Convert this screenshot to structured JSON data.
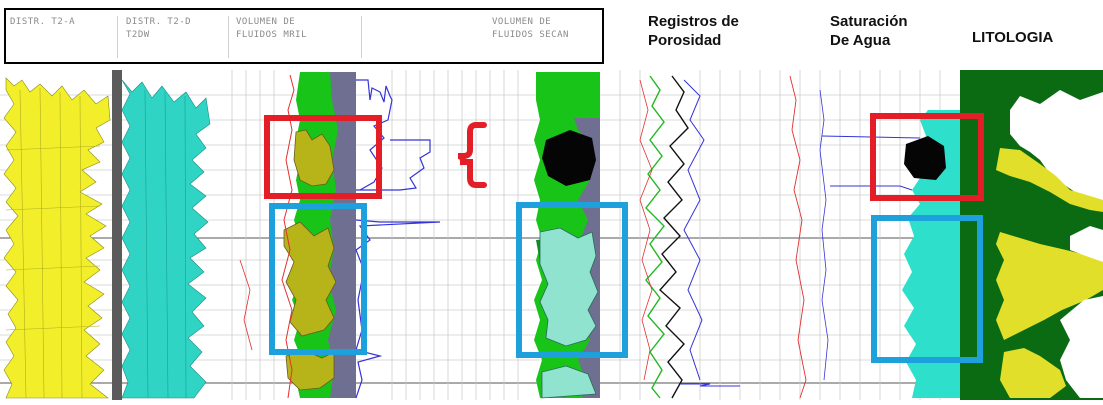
{
  "header": {
    "col1": "DISTR. T2-A",
    "col2_line1": "DISTR. T2-D",
    "col2_line2": "T2DW",
    "col3_line1": "VOLUMEN DE",
    "col3_line2": "FLUIDOS MRIL",
    "col4_line1": "VOLUMEN DE",
    "col4_line2": "FLUIDOS SECAN"
  },
  "titles": {
    "porosity_line1": "Registros de",
    "porosity_line2": "Porosidad",
    "saturation_line1": "Saturación",
    "saturation_line2": "De Agua",
    "lithology": "LITOLOGIA"
  },
  "colors": {
    "distribution_a": "#f2ef2a",
    "distribution_d": "#2fd4c4",
    "fluid_green": "#19c419",
    "fluid_olive": "#b7b419",
    "fluid_slate": "#6f6f92",
    "fluid_cyan": "#8fe3cf",
    "hydrocarbon_black": "#050505",
    "saturation_cyan": "#2ee0cc",
    "lithology_dark_green": "#0a6b12",
    "lithology_yellow": "#e2df2a",
    "highlight_red": "#e41e26",
    "highlight_blue": "#1ea0dc",
    "curve_blue": "#3434d8",
    "curve_red": "#e33030"
  }
}
